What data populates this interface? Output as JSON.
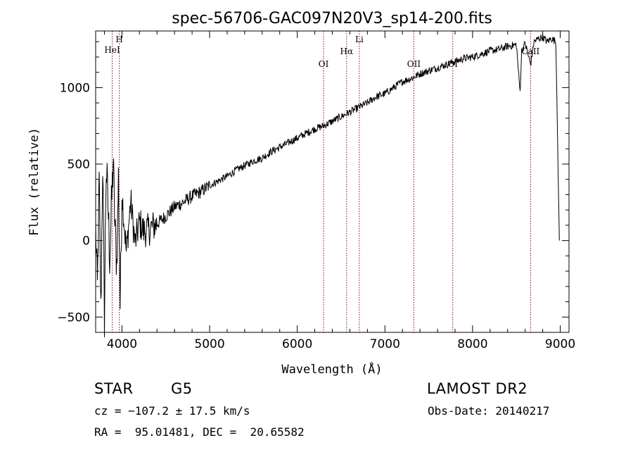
{
  "chart_data": {
    "type": "line",
    "title": "spec-56706-GAC097N20V3_sp14-200.fits",
    "xlabel": "Wavelength (Å)",
    "ylabel": "Flux (relative)",
    "xlim": [
      3700,
      9100
    ],
    "ylim": [
      -600,
      1370
    ],
    "xticks": [
      4000,
      5000,
      6000,
      7000,
      8000,
      9000
    ],
    "yticks": [
      -500,
      0,
      500,
      1000
    ],
    "grid": false,
    "series": [
      {
        "x": [
          3700,
          3720,
          3740,
          3760,
          3780,
          3800,
          3820,
          3840,
          3860,
          3880,
          3900,
          3920,
          3940,
          3960,
          3980,
          4000,
          4050,
          4100,
          4150,
          4200,
          4250,
          4300,
          4400,
          4500,
          4600,
          4700,
          4800,
          4900,
          5000,
          5100,
          5200,
          5300,
          5400,
          5500,
          5600,
          5700,
          5800,
          5900,
          6000,
          6100,
          6200,
          6300,
          6400,
          6500,
          6600,
          6700,
          6800,
          6900,
          7000,
          7100,
          7200,
          7300,
          7400,
          7500,
          7600,
          7700,
          7800,
          7900,
          8000,
          8100,
          8200,
          8300,
          8400,
          8500,
          8542,
          8560,
          8600,
          8662,
          8700,
          8750,
          8800,
          8850,
          8900,
          8950,
          8990
        ],
        "values": [
          80,
          -320,
          380,
          -480,
          520,
          -500,
          480,
          250,
          -100,
          200,
          520,
          80,
          -150,
          410,
          -420,
          320,
          -80,
          260,
          -20,
          120,
          60,
          70,
          110,
          160,
          220,
          250,
          290,
          320,
          360,
          390,
          420,
          460,
          490,
          520,
          540,
          580,
          610,
          640,
          670,
          700,
          730,
          750,
          780,
          810,
          840,
          870,
          900,
          940,
          960,
          1000,
          1040,
          1060,
          1090,
          1110,
          1130,
          1150,
          1170,
          1190,
          1200,
          1220,
          1240,
          1250,
          1270,
          1280,
          970,
          1240,
          1290,
          1150,
          1300,
          1320,
          1330,
          1300,
          1320,
          1300,
          0
        ]
      }
    ],
    "lines": [
      {
        "label": "HeI",
        "wavelength": 3889
      },
      {
        "label": "H",
        "wavelength": 3970
      },
      {
        "label": "OI",
        "wavelength": 6300
      },
      {
        "label": "Hα",
        "wavelength": 6563
      },
      {
        "label": "Li",
        "wavelength": 6708
      },
      {
        "label": "OII",
        "wavelength": 7330
      },
      {
        "label": "OI",
        "wavelength": 7774
      },
      {
        "label": "CaII",
        "wavelength": 8662
      }
    ],
    "line_color": "#8b0000"
  },
  "info": {
    "object_class": "STAR",
    "subclass": "G5",
    "survey": "LAMOST DR2",
    "cz": "cz = −107.2 ± 17.5 km/s",
    "obs_date": "Obs-Date: 20140217",
    "coords": "RA =  95.01481, DEC =  20.65582"
  }
}
